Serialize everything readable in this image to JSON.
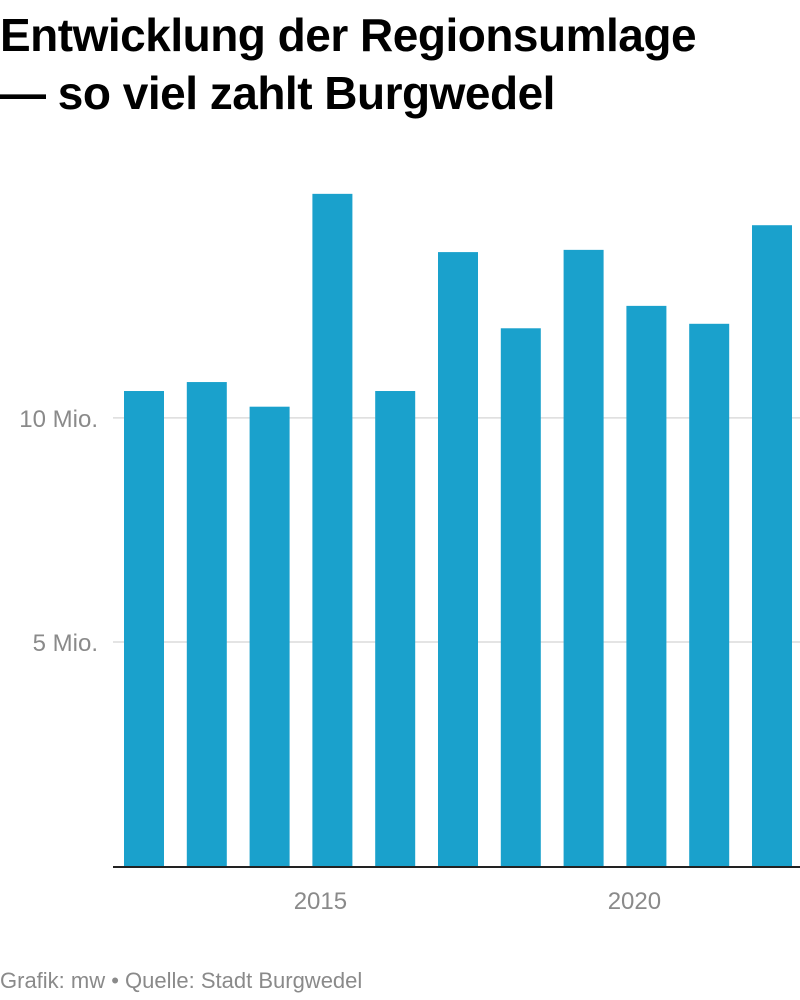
{
  "title": {
    "line1": "Entwicklung der Regionsumlage",
    "line2": "— so viel zahlt Burgwedel"
  },
  "footer": {
    "credit": "Grafik: mw • Quelle: Stadt Burgwedel"
  },
  "colors": {
    "bar": "#1aa1cc",
    "grid": "#dcdcdc",
    "axis": "#222222",
    "tick_text": "#8a8a8a",
    "title": "#000000"
  },
  "chart_data": {
    "type": "bar",
    "categories": [
      "2012",
      "2013",
      "2014",
      "2015",
      "2016",
      "2017",
      "2018",
      "2019",
      "2020",
      "2021",
      "2022"
    ],
    "values": [
      10.6,
      10.8,
      10.25,
      15.0,
      10.6,
      13.7,
      12.0,
      13.75,
      12.5,
      12.1,
      14.3
    ],
    "value_unit": "Mio.",
    "ylim": [
      0,
      15.8
    ],
    "y_ticks": [
      {
        "value": 5,
        "label": "5 Mio."
      },
      {
        "value": 10,
        "label": "10 Mio."
      }
    ],
    "x_ticks": [
      {
        "category": "2015",
        "label": "2015"
      },
      {
        "category": "2020",
        "label": "2020"
      }
    ],
    "grid": true,
    "legend": "none",
    "xlabel": "",
    "ylabel": ""
  }
}
